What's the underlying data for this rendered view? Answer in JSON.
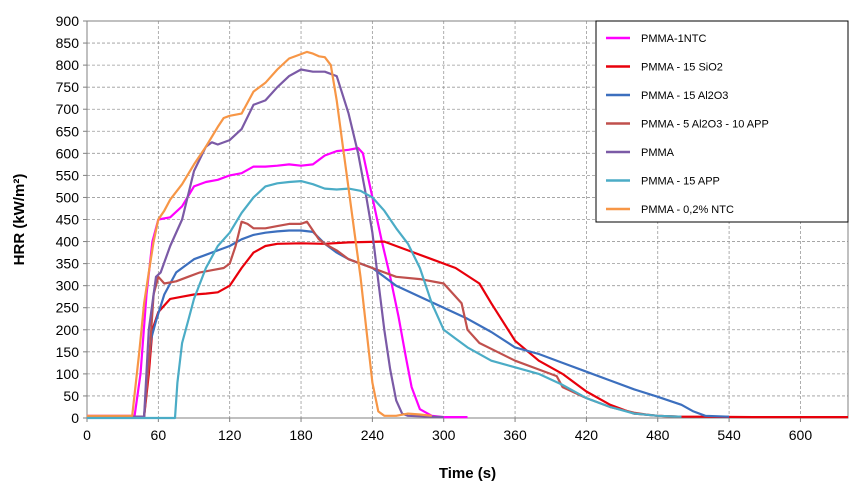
{
  "chart_data": {
    "type": "line",
    "xlabel": "Time (s)",
    "ylabel": "HRR (kW/m²)",
    "xlim": [
      0,
      640
    ],
    "ylim": [
      0,
      900
    ],
    "x_ticks": [
      0,
      60,
      120,
      180,
      240,
      300,
      360,
      420,
      480,
      540,
      600
    ],
    "y_ticks": [
      0,
      50,
      100,
      150,
      200,
      250,
      300,
      350,
      400,
      450,
      500,
      550,
      600,
      650,
      700,
      750,
      800,
      850,
      900
    ],
    "grid": true,
    "legend_position": "top-right",
    "series": [
      {
        "name": "PMMA-1NTC",
        "color": "#ff00ff",
        "points": [
          [
            0,
            5
          ],
          [
            40,
            5
          ],
          [
            45,
            100
          ],
          [
            50,
            280
          ],
          [
            55,
            400
          ],
          [
            60,
            450
          ],
          [
            70,
            455
          ],
          [
            80,
            480
          ],
          [
            90,
            525
          ],
          [
            100,
            535
          ],
          [
            110,
            540
          ],
          [
            120,
            550
          ],
          [
            130,
            555
          ],
          [
            140,
            570
          ],
          [
            150,
            570
          ],
          [
            160,
            572
          ],
          [
            170,
            575
          ],
          [
            180,
            572
          ],
          [
            190,
            575
          ],
          [
            200,
            595
          ],
          [
            210,
            605
          ],
          [
            220,
            608
          ],
          [
            228,
            612
          ],
          [
            232,
            600
          ],
          [
            240,
            500
          ],
          [
            248,
            400
          ],
          [
            255,
            320
          ],
          [
            262,
            230
          ],
          [
            268,
            140
          ],
          [
            273,
            70
          ],
          [
            280,
            20
          ],
          [
            290,
            5
          ],
          [
            300,
            2
          ],
          [
            320,
            2
          ]
        ]
      },
      {
        "name": "PMMA - 15 SiO2",
        "color": "#e8000b",
        "points": [
          [
            0,
            3
          ],
          [
            48,
            3
          ],
          [
            52,
            100
          ],
          [
            55,
            200
          ],
          [
            60,
            240
          ],
          [
            70,
            270
          ],
          [
            80,
            275
          ],
          [
            90,
            280
          ],
          [
            100,
            282
          ],
          [
            110,
            285
          ],
          [
            120,
            300
          ],
          [
            130,
            340
          ],
          [
            140,
            375
          ],
          [
            150,
            390
          ],
          [
            160,
            395
          ],
          [
            180,
            396
          ],
          [
            200,
            395
          ],
          [
            220,
            398
          ],
          [
            250,
            400
          ],
          [
            270,
            380
          ],
          [
            290,
            360
          ],
          [
            310,
            340
          ],
          [
            330,
            305
          ],
          [
            340,
            260
          ],
          [
            360,
            175
          ],
          [
            380,
            130
          ],
          [
            400,
            100
          ],
          [
            420,
            60
          ],
          [
            440,
            30
          ],
          [
            460,
            10
          ],
          [
            480,
            5
          ],
          [
            500,
            3
          ],
          [
            520,
            3
          ],
          [
            560,
            2
          ],
          [
            640,
            2
          ]
        ]
      },
      {
        "name": "PMMA - 15 Al2O3",
        "color": "#3c6fbe",
        "points": [
          [
            0,
            3
          ],
          [
            48,
            3
          ],
          [
            51,
            100
          ],
          [
            54,
            180
          ],
          [
            58,
            220
          ],
          [
            65,
            280
          ],
          [
            75,
            330
          ],
          [
            90,
            360
          ],
          [
            100,
            370
          ],
          [
            110,
            380
          ],
          [
            120,
            390
          ],
          [
            130,
            405
          ],
          [
            140,
            415
          ],
          [
            150,
            420
          ],
          [
            160,
            423
          ],
          [
            170,
            425
          ],
          [
            180,
            425
          ],
          [
            190,
            422
          ],
          [
            200,
            395
          ],
          [
            210,
            375
          ],
          [
            220,
            360
          ],
          [
            240,
            340
          ],
          [
            260,
            300
          ],
          [
            280,
            275
          ],
          [
            300,
            250
          ],
          [
            320,
            225
          ],
          [
            340,
            195
          ],
          [
            360,
            160
          ],
          [
            380,
            145
          ],
          [
            400,
            125
          ],
          [
            420,
            105
          ],
          [
            440,
            85
          ],
          [
            460,
            65
          ],
          [
            480,
            48
          ],
          [
            500,
            30
          ],
          [
            510,
            15
          ],
          [
            520,
            5
          ],
          [
            540,
            3
          ]
        ]
      },
      {
        "name": "PMMA - 5 Al2O3 - 10 APP",
        "color": "#c0504d",
        "points": [
          [
            0,
            3
          ],
          [
            48,
            3
          ],
          [
            52,
            120
          ],
          [
            56,
            280
          ],
          [
            60,
            320
          ],
          [
            65,
            305
          ],
          [
            75,
            310
          ],
          [
            85,
            320
          ],
          [
            95,
            330
          ],
          [
            105,
            335
          ],
          [
            115,
            340
          ],
          [
            120,
            350
          ],
          [
            125,
            390
          ],
          [
            130,
            445
          ],
          [
            135,
            440
          ],
          [
            140,
            430
          ],
          [
            150,
            430
          ],
          [
            160,
            435
          ],
          [
            170,
            440
          ],
          [
            180,
            440
          ],
          [
            185,
            445
          ],
          [
            190,
            425
          ],
          [
            195,
            405
          ],
          [
            200,
            395
          ],
          [
            210,
            380
          ],
          [
            220,
            360
          ],
          [
            240,
            340
          ],
          [
            260,
            320
          ],
          [
            280,
            315
          ],
          [
            300,
            305
          ],
          [
            315,
            260
          ],
          [
            320,
            200
          ],
          [
            330,
            170
          ],
          [
            345,
            150
          ],
          [
            360,
            130
          ],
          [
            380,
            110
          ],
          [
            395,
            95
          ],
          [
            400,
            70
          ],
          [
            420,
            45
          ],
          [
            440,
            25
          ],
          [
            460,
            12
          ],
          [
            470,
            8
          ],
          [
            480,
            5
          ],
          [
            500,
            3
          ]
        ]
      },
      {
        "name": "PMMA",
        "color": "#7b5aa6",
        "points": [
          [
            0,
            3
          ],
          [
            48,
            3
          ],
          [
            52,
            200
          ],
          [
            58,
            320
          ],
          [
            62,
            330
          ],
          [
            70,
            390
          ],
          [
            80,
            450
          ],
          [
            90,
            560
          ],
          [
            100,
            615
          ],
          [
            105,
            625
          ],
          [
            110,
            620
          ],
          [
            120,
            630
          ],
          [
            130,
            655
          ],
          [
            140,
            710
          ],
          [
            150,
            720
          ],
          [
            160,
            750
          ],
          [
            170,
            775
          ],
          [
            180,
            790
          ],
          [
            190,
            785
          ],
          [
            200,
            785
          ],
          [
            210,
            775
          ],
          [
            220,
            690
          ],
          [
            228,
            600
          ],
          [
            235,
            500
          ],
          [
            240,
            420
          ],
          [
            245,
            310
          ],
          [
            250,
            200
          ],
          [
            255,
            110
          ],
          [
            260,
            40
          ],
          [
            265,
            10
          ],
          [
            270,
            5
          ],
          [
            290,
            3
          ],
          [
            300,
            2
          ]
        ]
      },
      {
        "name": "PMMA - 15 APP",
        "color": "#4bacc6",
        "points": [
          [
            0,
            0
          ],
          [
            74,
            0
          ],
          [
            76,
            80
          ],
          [
            80,
            170
          ],
          [
            85,
            220
          ],
          [
            90,
            270
          ],
          [
            100,
            340
          ],
          [
            110,
            390
          ],
          [
            120,
            420
          ],
          [
            130,
            465
          ],
          [
            140,
            500
          ],
          [
            150,
            525
          ],
          [
            160,
            532
          ],
          [
            170,
            535
          ],
          [
            180,
            537
          ],
          [
            190,
            530
          ],
          [
            200,
            520
          ],
          [
            210,
            518
          ],
          [
            220,
            520
          ],
          [
            230,
            515
          ],
          [
            240,
            500
          ],
          [
            250,
            470
          ],
          [
            260,
            430
          ],
          [
            270,
            395
          ],
          [
            280,
            340
          ],
          [
            290,
            260
          ],
          [
            300,
            200
          ],
          [
            310,
            180
          ],
          [
            320,
            160
          ],
          [
            340,
            130
          ],
          [
            360,
            115
          ],
          [
            380,
            100
          ],
          [
            400,
            75
          ],
          [
            420,
            45
          ],
          [
            440,
            25
          ],
          [
            460,
            10
          ],
          [
            480,
            5
          ],
          [
            500,
            3
          ]
        ]
      },
      {
        "name": "PMMA - 0,2% NTC",
        "color": "#f79646",
        "points": [
          [
            0,
            5
          ],
          [
            38,
            5
          ],
          [
            44,
            150
          ],
          [
            48,
            260
          ],
          [
            52,
            330
          ],
          [
            56,
            400
          ],
          [
            60,
            450
          ],
          [
            65,
            470
          ],
          [
            70,
            495
          ],
          [
            80,
            530
          ],
          [
            90,
            575
          ],
          [
            100,
            615
          ],
          [
            110,
            660
          ],
          [
            115,
            680
          ],
          [
            120,
            685
          ],
          [
            130,
            690
          ],
          [
            140,
            740
          ],
          [
            150,
            760
          ],
          [
            160,
            790
          ],
          [
            170,
            815
          ],
          [
            180,
            825
          ],
          [
            185,
            830
          ],
          [
            190,
            826
          ],
          [
            195,
            820
          ],
          [
            200,
            818
          ],
          [
            205,
            800
          ],
          [
            210,
            720
          ],
          [
            215,
            620
          ],
          [
            220,
            520
          ],
          [
            225,
            420
          ],
          [
            230,
            320
          ],
          [
            235,
            200
          ],
          [
            240,
            80
          ],
          [
            245,
            15
          ],
          [
            250,
            5
          ],
          [
            260,
            5
          ],
          [
            270,
            10
          ],
          [
            280,
            8
          ],
          [
            290,
            5
          ]
        ]
      }
    ]
  }
}
